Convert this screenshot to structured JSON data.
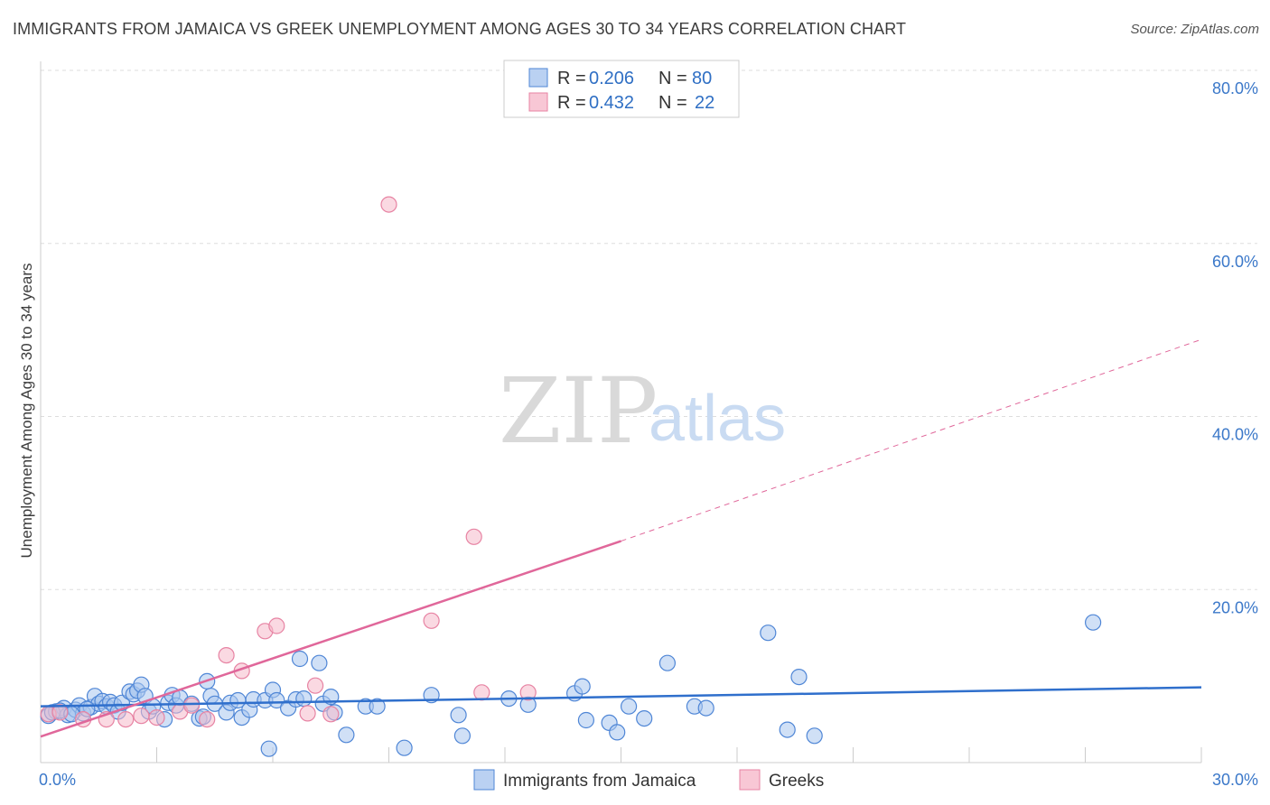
{
  "header": {
    "title": "IMMIGRANTS FROM JAMAICA VS GREEK UNEMPLOYMENT AMONG AGES 30 TO 34 YEARS CORRELATION CHART",
    "source": "Source: ZipAtlas.com"
  },
  "watermark": {
    "zip": "ZIP",
    "atlas": "atlas"
  },
  "colors": {
    "blue_fill": "#a9c6ef",
    "blue_stroke": "#4f86d6",
    "blue_line": "#2f6fcc",
    "pink_fill": "#f6b9cb",
    "pink_stroke": "#e783a3",
    "pink_line": "#e0679a",
    "grid": "#dddddd",
    "tick_text": "#3b78c9"
  },
  "legend": {
    "rows": [
      {
        "r_label": "R =",
        "r_value": "0.206",
        "n_label": "N =",
        "n_value": "80",
        "series": "blue"
      },
      {
        "r_label": "R =",
        "r_value": "0.432",
        "n_label": "N =",
        "n_value": "22",
        "series": "pink"
      }
    ]
  },
  "bottom_legend": [
    {
      "label": "Immigrants from Jamaica",
      "series": "blue"
    },
    {
      "label": "Greeks",
      "series": "pink"
    }
  ],
  "chart_data": {
    "type": "scatter",
    "title": "IMMIGRANTS FROM JAMAICA VS GREEK UNEMPLOYMENT AMONG AGES 30 TO 34 YEARS CORRELATION CHART",
    "xlabel": "",
    "ylabel": "Unemployment Among Ages 30 to 34 years",
    "xlim": [
      0,
      30
    ],
    "ylim": [
      0,
      80
    ],
    "x_tick_labels": [
      "0.0%",
      "30.0%"
    ],
    "y_ticks": [
      20,
      40,
      60,
      80
    ],
    "y_tick_labels": [
      "20.0%",
      "40.0%",
      "60.0%",
      "80.0%"
    ],
    "series": [
      {
        "name": "Immigrants from Jamaica",
        "color": "blue",
        "points": [
          [
            0.2,
            5.4
          ],
          [
            0.4,
            5.9
          ],
          [
            0.6,
            6.3
          ],
          [
            0.7,
            5.5
          ],
          [
            0.9,
            6.1
          ],
          [
            1.0,
            6.6
          ],
          [
            1.1,
            5.7
          ],
          [
            1.3,
            6.4
          ],
          [
            1.4,
            7.7
          ],
          [
            1.5,
            6.8
          ],
          [
            1.6,
            7.1
          ],
          [
            1.7,
            6.5
          ],
          [
            1.8,
            7.0
          ],
          [
            1.9,
            6.6
          ],
          [
            2.0,
            5.9
          ],
          [
            2.1,
            6.9
          ],
          [
            2.3,
            8.2
          ],
          [
            2.4,
            7.9
          ],
          [
            2.5,
            8.3
          ],
          [
            2.6,
            9.0
          ],
          [
            2.7,
            7.7
          ],
          [
            2.8,
            5.9
          ],
          [
            2.9,
            6.5
          ],
          [
            3.2,
            5.0
          ],
          [
            3.3,
            6.9
          ],
          [
            3.4,
            7.8
          ],
          [
            3.5,
            6.6
          ],
          [
            3.6,
            7.5
          ],
          [
            3.9,
            6.8
          ],
          [
            4.1,
            5.1
          ],
          [
            4.2,
            5.3
          ],
          [
            4.3,
            9.4
          ],
          [
            4.4,
            7.7
          ],
          [
            4.5,
            6.8
          ],
          [
            4.8,
            5.8
          ],
          [
            4.9,
            6.9
          ],
          [
            5.1,
            7.2
          ],
          [
            5.2,
            5.2
          ],
          [
            5.4,
            6.1
          ],
          [
            5.5,
            7.3
          ],
          [
            5.8,
            7.2
          ],
          [
            5.9,
            1.6
          ],
          [
            6.0,
            8.4
          ],
          [
            6.1,
            7.2
          ],
          [
            6.4,
            6.3
          ],
          [
            6.6,
            7.3
          ],
          [
            6.7,
            12.0
          ],
          [
            6.8,
            7.4
          ],
          [
            7.2,
            11.5
          ],
          [
            7.3,
            6.8
          ],
          [
            7.5,
            7.6
          ],
          [
            7.6,
            5.8
          ],
          [
            7.9,
            3.2
          ],
          [
            8.4,
            6.5
          ],
          [
            8.7,
            6.5
          ],
          [
            9.4,
            1.7
          ],
          [
            10.1,
            7.8
          ],
          [
            10.8,
            5.5
          ],
          [
            10.9,
            3.1
          ],
          [
            12.1,
            7.4
          ],
          [
            12.6,
            6.7
          ],
          [
            13.8,
            8.0
          ],
          [
            14.0,
            8.8
          ],
          [
            14.1,
            4.9
          ],
          [
            14.7,
            4.6
          ],
          [
            14.9,
            3.5
          ],
          [
            15.2,
            6.5
          ],
          [
            15.6,
            5.1
          ],
          [
            16.2,
            11.5
          ],
          [
            16.9,
            6.5
          ],
          [
            17.2,
            6.3
          ],
          [
            18.8,
            15.0
          ],
          [
            19.3,
            3.8
          ],
          [
            19.6,
            9.9
          ],
          [
            20.0,
            3.1
          ],
          [
            27.2,
            16.2
          ],
          [
            0.3,
            5.8
          ],
          [
            0.5,
            6.0
          ],
          [
            0.8,
            5.6
          ],
          [
            1.2,
            6.2
          ]
        ]
      },
      {
        "name": "Greeks",
        "color": "pink",
        "points": [
          [
            0.2,
            5.6
          ],
          [
            0.5,
            5.8
          ],
          [
            1.1,
            5.0
          ],
          [
            1.7,
            5.0
          ],
          [
            2.2,
            5.0
          ],
          [
            2.6,
            5.4
          ],
          [
            3.0,
            5.2
          ],
          [
            3.6,
            5.9
          ],
          [
            3.9,
            6.6
          ],
          [
            4.3,
            5.0
          ],
          [
            4.8,
            12.4
          ],
          [
            5.2,
            10.6
          ],
          [
            5.8,
            15.2
          ],
          [
            6.1,
            15.8
          ],
          [
            6.9,
            5.7
          ],
          [
            7.1,
            8.9
          ],
          [
            7.5,
            5.6
          ],
          [
            9.0,
            64.5
          ],
          [
            10.1,
            16.4
          ],
          [
            11.2,
            26.1
          ],
          [
            11.4,
            8.1
          ],
          [
            12.6,
            8.1
          ]
        ]
      }
    ],
    "trendlines": [
      {
        "series": "Immigrants from Jamaica",
        "x": [
          0,
          30
        ],
        "y": [
          6.5,
          8.7
        ],
        "style": "solid"
      },
      {
        "series": "Greeks",
        "x": [
          0,
          15
        ],
        "y": [
          3.0,
          25.6
        ],
        "style": "solid"
      },
      {
        "series": "Greeks",
        "x": [
          15,
          30
        ],
        "y": [
          25.6,
          48.9
        ],
        "style": "dashed"
      }
    ]
  }
}
